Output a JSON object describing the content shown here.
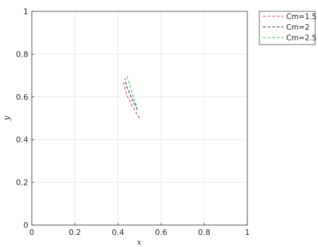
{
  "chart_data": {
    "type": "line",
    "title": "",
    "xlabel": "x",
    "ylabel": "y",
    "xlim": [
      0,
      1
    ],
    "ylim": [
      0,
      1
    ],
    "xticks": [
      "0",
      "0.2",
      "0.4",
      "0.6",
      "0.8",
      "1"
    ],
    "yticks": [
      "0",
      "0.2",
      "0.4",
      "0.6",
      "0.8",
      "1"
    ],
    "grid": true,
    "legend_position": "outside-top-right",
    "series": [
      {
        "name": "Cm=1.5",
        "color": "#e8383b",
        "line_style": "dashed",
        "x": [
          0.5,
          0.47,
          0.44,
          0.425
        ],
        "y": [
          0.5,
          0.55,
          0.61,
          0.67
        ]
      },
      {
        "name": "Cm=2",
        "color": "#1a237e",
        "line_style": "dashed",
        "x": [
          0.49,
          0.465,
          0.44,
          0.432
        ],
        "y": [
          0.54,
          0.59,
          0.65,
          0.685
        ]
      },
      {
        "name": "Cm=2.5",
        "color": "#2ecc40",
        "line_style": "dashed",
        "x": [
          0.485,
          0.465,
          0.45,
          0.44
        ],
        "y": [
          0.56,
          0.62,
          0.67,
          0.7
        ]
      }
    ]
  }
}
